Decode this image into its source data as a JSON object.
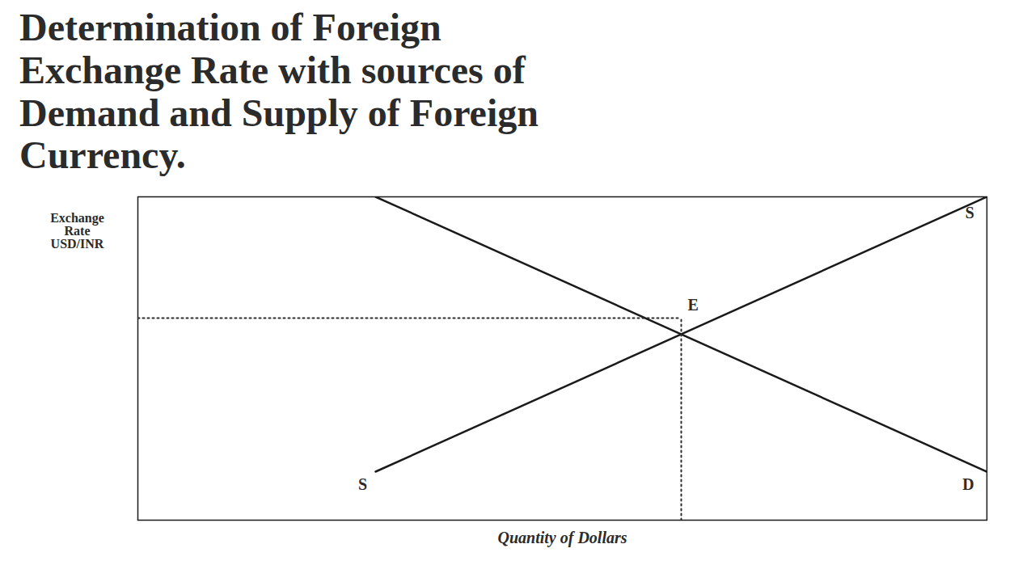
{
  "chart_data": {
    "type": "line",
    "title": "Determination of Foreign\nExchange Rate with sources of\nDemand and Supply of Foreign\nCurrency.",
    "xlabel": "Quantity of Dollars",
    "ylabel": "Exchange\nRate\nUSD/INR",
    "x": [
      0.28,
      1.0
    ],
    "series": [
      {
        "color": "#1a1a1a",
        "values": [
          0.15,
          1.0
        ]
      },
      {
        "color": "#1a1a1a",
        "values": [
          1.0,
          0.15
        ]
      }
    ],
    "equilibrium": {
      "x": 0.64,
      "y": 0.625,
      "label": "E"
    },
    "annotations": [
      {
        "text": "S",
        "x": 0.985,
        "y": 0.97
      },
      {
        "text": "S",
        "x": 0.27,
        "y": 0.13
      },
      {
        "text": "D",
        "x": 0.985,
        "y": 0.13
      }
    ],
    "xlim": [
      0,
      1
    ],
    "ylim": [
      0,
      1
    ],
    "tick_labels": false,
    "grid": false
  }
}
